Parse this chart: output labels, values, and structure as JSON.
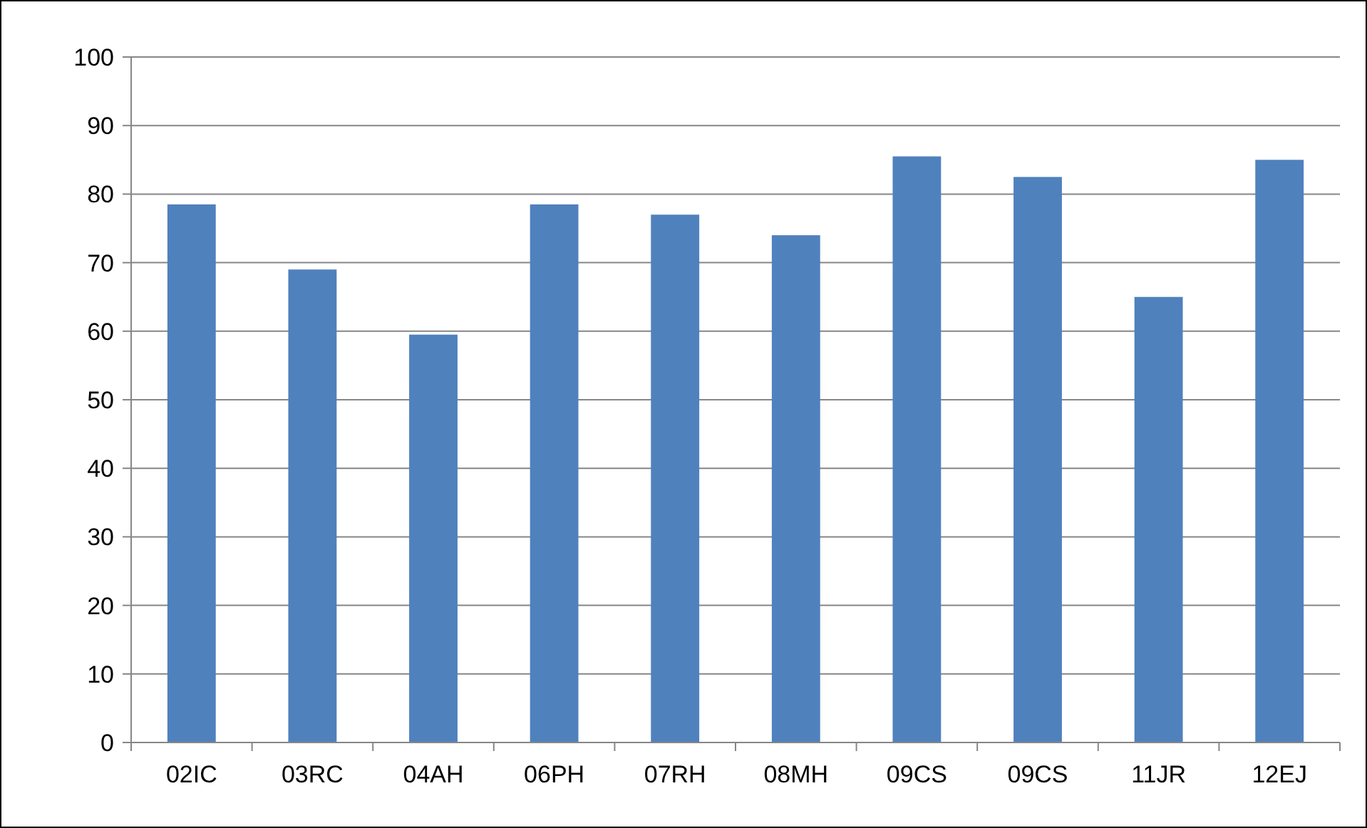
{
  "chart_data": {
    "type": "bar",
    "categories": [
      "02IC",
      "03RC",
      "04AH",
      "06PH",
      "07RH",
      "08MH",
      "09CS",
      "09CS",
      "11JR",
      "12EJ"
    ],
    "values": [
      78.5,
      69,
      59.5,
      78.5,
      77,
      74,
      85.5,
      82.5,
      65,
      85
    ],
    "color": "#4f81bd",
    "ylim": [
      0,
      100
    ],
    "yticks": [
      0,
      10,
      20,
      30,
      40,
      50,
      60,
      70,
      80,
      90,
      100
    ],
    "grid": "y"
  }
}
